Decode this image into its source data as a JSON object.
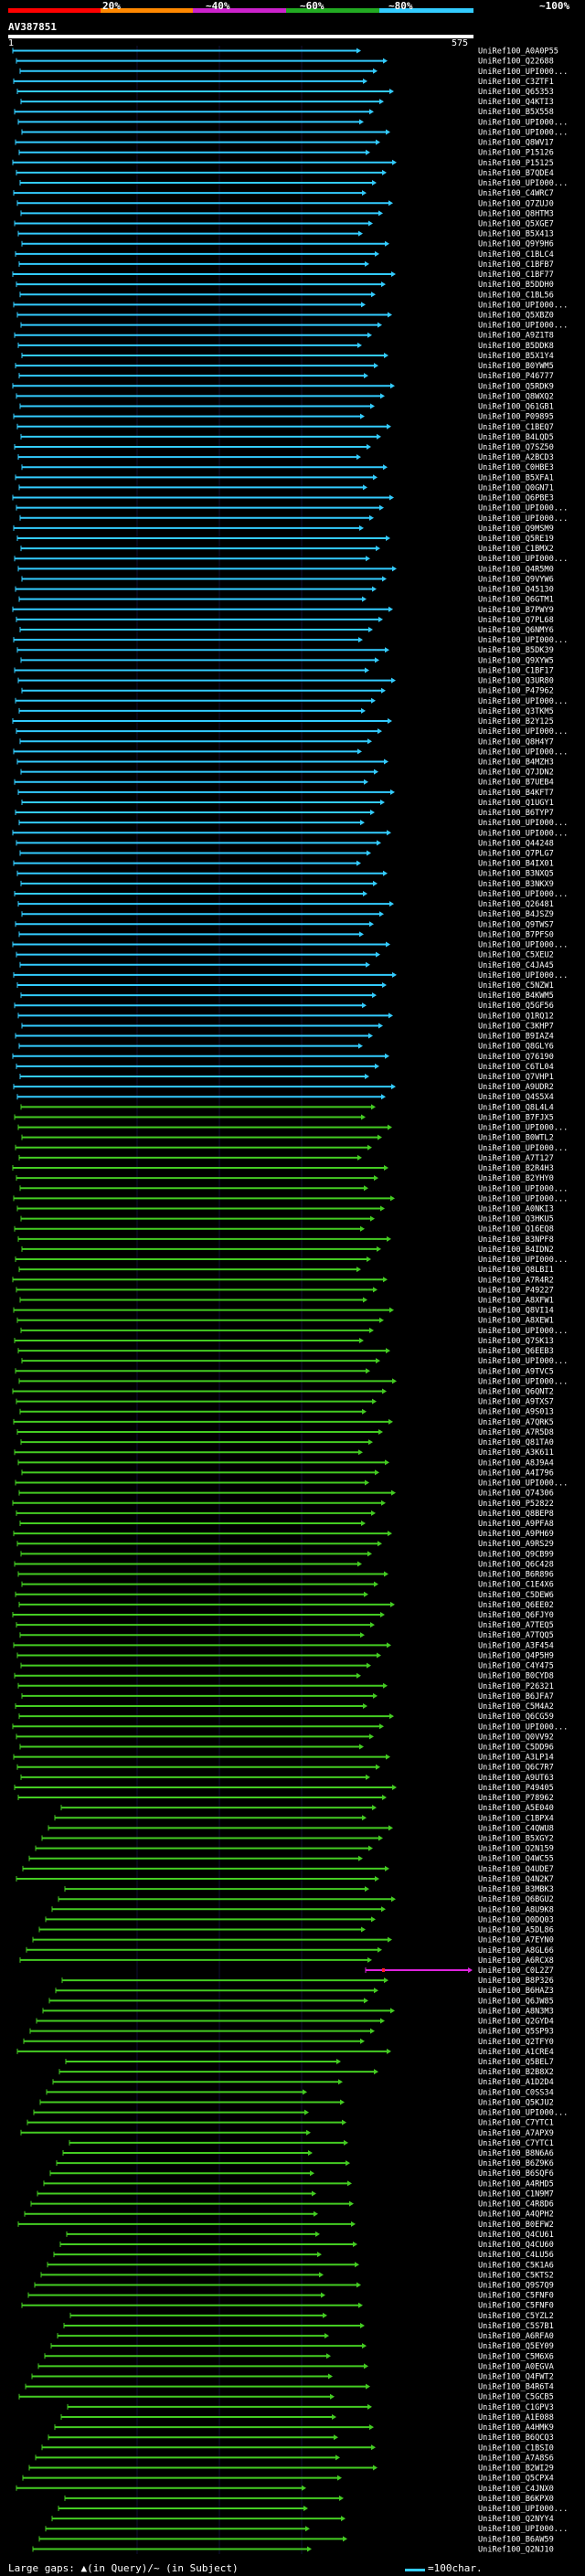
{
  "legend": {
    "percent_labels": [
      "20%",
      "~40%",
      "~60%",
      "~80%",
      "~100%"
    ],
    "colors": [
      "#ff0000",
      "#ff8800",
      "#cc22cc",
      "#22aa22",
      "#33ccff"
    ]
  },
  "query": {
    "id": "AV387851",
    "start": "1",
    "end": "575"
  },
  "footer": {
    "gaps_text": "Large gaps: ▲(in Query)/~ (in Subject)",
    "scale_text": "=100char."
  },
  "hit_colors": {
    "blue": "#33ccff",
    "green": "#44cc22",
    "magenta": "#dd22dd",
    "red_marker": "#ff2222"
  },
  "hits": [
    "UniRef100_A0A0P55",
    "UniRef100_Q22688",
    "UniRef100_UPI000...",
    "UniRef100_C3ZTF1",
    "UniRef100_Q65353",
    "UniRef100_Q4KTI3",
    "UniRef100_B5X558",
    "UniRef100_UPI000...",
    "UniRef100_UPI000...",
    "UniRef100_Q8WV17",
    "UniRef100_P15126",
    "UniRef100_P15125",
    "UniRef100_B7QDE4",
    "UniRef100_UPI000...",
    "UniRef100_C4WRC7",
    "UniRef100_Q7ZUJ0",
    "UniRef100_Q8HTM3",
    "UniRef100_Q5XGE7",
    "UniRef100_B5X413",
    "UniRef100_Q9Y9H6",
    "UniRef100_C1BLC4",
    "UniRef100_C1BFB7",
    "UniRef100_C1BF77",
    "UniRef100_B5DDH0",
    "UniRef100_C1BL56",
    "UniRef100_UPI000...",
    "UniRef100_Q5XBZ0",
    "UniRef100_UPI000...",
    "UniRef100_A9Z1T8",
    "UniRef100_B5DDK8",
    "UniRef100_B5X1Y4",
    "UniRef100_B0YWM5",
    "UniRef100_P46777",
    "UniRef100_Q5RDK9",
    "UniRef100_Q8WXQ2",
    "UniRef100_Q61GB1",
    "UniRef100_P09895",
    "UniRef100_C1BEQ7",
    "UniRef100_B4LQD5",
    "UniRef100_Q7SZ50",
    "UniRef100_A2BCD3",
    "UniRef100_C0HBE3",
    "UniRef100_B5XFA1",
    "UniRef100_Q0GN71",
    "UniRef100_Q6PBE3",
    "UniRef100_UPI000...",
    "UniRef100_UPI000...",
    "UniRef100_Q9MSM9",
    "UniRef100_Q5RE19",
    "UniRef100_C1BMX2",
    "UniRef100_UPI000...",
    "UniRef100_Q4R5M0",
    "UniRef100_Q9VYW6",
    "UniRef100_Q45130",
    "UniRef100_Q6GTM1",
    "UniRef100_B7PWY9",
    "UniRef100_Q7PL68",
    "UniRef100_Q6NMY6",
    "UniRef100_UPI000...",
    "UniRef100_B5DK39",
    "UniRef100_Q9XYW5",
    "UniRef100_C1BF17",
    "UniRef100_Q3UR80",
    "UniRef100_P47962",
    "UniRef100_UPI000...",
    "UniRef100_Q3TKM5",
    "UniRef100_B2Y125",
    "UniRef100_UPI000...",
    "UniRef100_Q8H4Y7",
    "UniRef100_UPI000...",
    "UniRef100_B4MZH3",
    "UniRef100_Q7JDN2",
    "UniRef100_B7UEB4",
    "UniRef100_B4KFT7",
    "UniRef100_Q1UGY1",
    "UniRef100_B6TYP7",
    "UniRef100_UPI000...",
    "UniRef100_UPI000...",
    "UniRef100_Q44248",
    "UniRef100_Q7PLG7",
    "UniRef100_B4IX01",
    "UniRef100_B3NXQ5",
    "UniRef100_B3NKX9",
    "UniRef100_UPI000...",
    "UniRef100_Q26481",
    "UniRef100_B4JSZ9",
    "UniRef100_Q9TWS7",
    "UniRef100_B7PFS0",
    "UniRef100_UPI000...",
    "UniRef100_C5XEU2",
    "UniRef100_C4JA45",
    "UniRef100_UPI000...",
    "UniRef100_C5NZW1",
    "UniRef100_B4KWM5",
    "UniRef100_Q5GF56",
    "UniRef100_Q1RQ12",
    "UniRef100_C3KHP7",
    "UniRef100_B9IAZ4",
    "UniRef100_Q8GLY6",
    "UniRef100_Q76190",
    "UniRef100_C6TL04",
    "UniRef100_Q7VHP1",
    "UniRef100_A9UDR2",
    "UniRef100_Q4S5X4",
    "UniRef100_Q8L4L4",
    "UniRef100_B7FJX5",
    "UniRef100_UPI000...",
    "UniRef100_B0WTL2",
    "UniRef100_UPI000...",
    "UniRef100_A7T127",
    "UniRef100_B2R4H3",
    "UniRef100_B2YHY0",
    "UniRef100_UPI000...",
    "UniRef100_UPI000...",
    "UniRef100_A0NKI3",
    "UniRef100_Q3HKU5",
    "UniRef100_Q16EQ8",
    "UniRef100_B3NPF8",
    "UniRef100_B4IDN2",
    "UniRef100_UPI000...",
    "UniRef100_Q8LBI1",
    "UniRef100_A7R4R2",
    "UniRef100_P49227",
    "UniRef100_A8XFW1",
    "UniRef100_Q8VI14",
    "UniRef100_A8XEW1",
    "UniRef100_UPI000...",
    "UniRef100_Q7SK13",
    "UniRef100_Q6EEB3",
    "UniRef100_UPI000...",
    "UniRef100_A9TVC5",
    "UniRef100_UPI000...",
    "UniRef100_Q6QNT2",
    "UniRef100_A9TXS7",
    "UniRef100_A9S013",
    "UniRef100_A7QRK5",
    "UniRef100_A7R5D8",
    "UniRef100_Q81TA0",
    "UniRef100_A3K611",
    "UniRef100_A8J9A4",
    "UniRef100_A4I796",
    "UniRef100_UPI000...",
    "UniRef100_Q74306",
    "UniRef100_P52822",
    "UniRef100_Q8BEP8",
    "UniRef100_A9PFA8",
    "UniRef100_A9PH69",
    "UniRef100_A9RS29",
    "UniRef100_Q9CB99",
    "UniRef100_Q6C428",
    "UniRef100_B6R896",
    "UniRef100_C1E4X6",
    "UniRef100_C5DEW6",
    "UniRef100_Q6EE02",
    "UniRef100_Q6FJY0",
    "UniRef100_A7TEQ5",
    "UniRef100_A7TQQ5",
    "UniRef100_A3F454",
    "UniRef100_Q4P5H9",
    "UniRef100_C4Y475",
    "UniRef100_B0CYD8",
    "UniRef100_P26321",
    "UniRef100_B6JFA7",
    "UniRef100_C5M4A2",
    "UniRef100_Q6CG59",
    "UniRef100_UPI000...",
    "UniRef100_Q0VV92",
    "UniRef100_C5DD96",
    "UniRef100_A3LP14",
    "UniRef100_Q6C7R7",
    "UniRef100_A9UT63",
    "UniRef100_P49405",
    "UniRef100_P78962",
    "UniRef100_A5E040",
    "UniRef100_C1BPX4",
    "UniRef100_C4QWU8",
    "UniRef100_B5XGY2",
    "UniRef100_Q2N159",
    "UniRef100_Q4WC55",
    "UniRef100_Q4UDE7",
    "UniRef100_Q4N2K7",
    "UniRef100_B3MBK3",
    "UniRef100_Q6BGU2",
    "UniRef100_A8U9K8",
    "UniRef100_Q0DQ03",
    "UniRef100_A5DL86",
    "UniRef100_A7EYN0",
    "UniRef100_A8GL66",
    "UniRef100_A6RCX8",
    "UniRef100_C0L2Z7",
    "UniRef100_B8P326",
    "UniRef100_B6HAZ3",
    "UniRef100_Q6JW85",
    "UniRef100_A8N3M3",
    "UniRef100_Q2GYD4",
    "UniRef100_Q5SP93",
    "UniRef100_Q2TFY0",
    "UniRef100_A1CRE4",
    "UniRef100_Q5BEL7",
    "UniRef100_B2B8X2",
    "UniRef100_A1D2D4",
    "UniRef100_C0SS34",
    "UniRef100_Q5KJU2",
    "UniRef100_UPI000...",
    "UniRef100_C7YTC1",
    "UniRef100_A7APX9",
    "UniRef100_C7YTC1",
    "UniRef100_B8N6A6",
    "UniRef100_B6Z9K6",
    "UniRef100_B6SQF6",
    "UniRef100_A4RHD5",
    "UniRef100_C1N9M7",
    "UniRef100_C4R8D6",
    "UniRef100_A4QPH2",
    "UniRef100_B0EFW2",
    "UniRef100_Q4CU61",
    "UniRef100_Q4CU60",
    "UniRef100_C4LU56",
    "UniRef100_C5K1A6",
    "UniRef100_C5KTS2",
    "UniRef100_Q9S7Q9",
    "UniRef100_C5FNF0",
    "UniRef100_C5FNF0",
    "UniRef100_C5YZL2",
    "UniRef100_C5S7B1",
    "UniRef100_A6RFA0",
    "UniRef100_Q5EY09",
    "UniRef100_C5M6X6",
    "UniRef100_A0EGVA",
    "UniRef100_Q4FWT2",
    "UniRef100_B4R6T4",
    "UniRef100_C5GCB5",
    "UniRef100_C1GPV3",
    "UniRef100_A1E088",
    "UniRef100_A4HMK9",
    "UniRef100_B6QCQ3",
    "UniRef100_C1BSI0",
    "UniRef100_A7A8S6",
    "UniRef100_B2WI29",
    "UniRef100_Q5CPX4",
    "UniRef100_C4JNX0",
    "UniRef100_B6KPX0",
    "UniRef100_UPI000...",
    "UniRef100_Q2NYY4",
    "UniRef100_UPI000...",
    "UniRef100_B6AW59",
    "UniRef100_Q2NJ10"
  ]
}
